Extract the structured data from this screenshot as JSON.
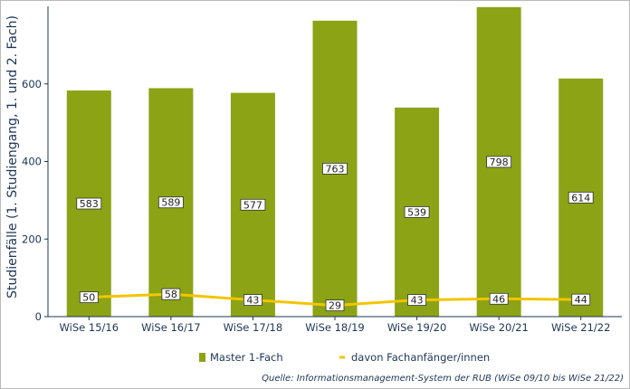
{
  "chart_data": {
    "type": "bar",
    "categories": [
      "WiSe 15/16",
      "WiSe 16/17",
      "WiSe 17/18",
      "WiSe 18/19",
      "WiSe 19/20",
      "WiSe 20/21",
      "WiSe 21/22"
    ],
    "series": [
      {
        "name": "Master 1-Fach",
        "type": "bar",
        "color": "#8ca315",
        "values": [
          583,
          589,
          577,
          763,
          539,
          798,
          614
        ]
      },
      {
        "name": "davon Fachanfänger/innen",
        "type": "line",
        "color": "#f2c500",
        "values": [
          50,
          58,
          43,
          29,
          43,
          46,
          44
        ]
      }
    ],
    "ylabel": "Studienfälle (1. Studiengang, 1. und 2. Fach)",
    "xlabel": "",
    "ylim": [
      0,
      800
    ],
    "yticks": [
      0,
      200,
      400,
      600
    ],
    "grid": false,
    "legend_position": "bottom",
    "source": "Quelle: Informationsmanagement-System der RUB (WiSe 09/10 bis WiSe 21/22)"
  }
}
